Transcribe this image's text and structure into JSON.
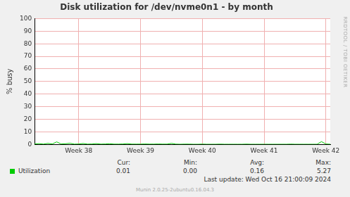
{
  "chart_data": {
    "type": "line",
    "title": "Disk utilization for /dev/nvme0n1 - by month",
    "y_label": "% busy",
    "categories": [
      null,
      null,
      null,
      null,
      null,
      null,
      null,
      null,
      null,
      null,
      "Week 38",
      null,
      null,
      null,
      null,
      null,
      null,
      null,
      null,
      null,
      null,
      null,
      null,
      null,
      "Week 39",
      null,
      null,
      null,
      null,
      null,
      null,
      null,
      null,
      null,
      null,
      null,
      null,
      null,
      "Week 40",
      null,
      null,
      null,
      null,
      null,
      null,
      null,
      null,
      null,
      null,
      null,
      null,
      null,
      "Week 41",
      null,
      null,
      null,
      null,
      null,
      null,
      null,
      null,
      null,
      null,
      null,
      null,
      null,
      "Week 42",
      null
    ],
    "series": [
      {
        "name": "Utilization",
        "color": "#00cc00",
        "values": [
          0.3,
          0.6,
          0.2,
          0.8,
          0.3,
          2.0,
          0.3,
          0.5,
          0.9,
          0.2,
          0.3,
          0.7,
          0.2,
          0.3,
          0.6,
          0.2,
          0.3,
          0.5,
          0.2,
          0.2,
          0.3,
          0.6,
          0.2,
          0.2,
          0.2,
          0.3,
          0.2,
          0.2,
          0.3,
          0.2,
          0.2,
          0.8,
          0.2,
          0.1,
          0.2,
          0.2,
          0.1,
          0.1,
          0.2,
          0.1,
          0.1,
          0.1,
          0.2,
          0.1,
          0.1,
          0.1,
          0.1,
          0.1,
          0.2,
          0.1,
          0.1,
          0.1,
          0.1,
          0.1,
          0.1,
          0.1,
          0.1,
          0.1,
          0.2,
          0.1,
          0.1,
          0.1,
          0.1,
          0.1,
          0.1,
          2.2,
          0.3,
          0.1
        ]
      }
    ],
    "ylim": [
      0,
      100
    ],
    "yticks": [
      0,
      10,
      20,
      30,
      40,
      50,
      60,
      70,
      80,
      90,
      100
    ],
    "grid": true,
    "legend": "bottom",
    "summary": {
      "headers": [
        "Cur:",
        "Min:",
        "Avg:",
        "Max:"
      ],
      "values": [
        "0.01",
        "0.00",
        "0.16",
        "5.27"
      ]
    },
    "last_update": "Last update: Wed Oct 16 21:00:09 2024",
    "side_text": "RRDTOOL / TOBI OETIKER",
    "footer": "Munin 2.0.25-2ubuntu0.16.04.3"
  }
}
